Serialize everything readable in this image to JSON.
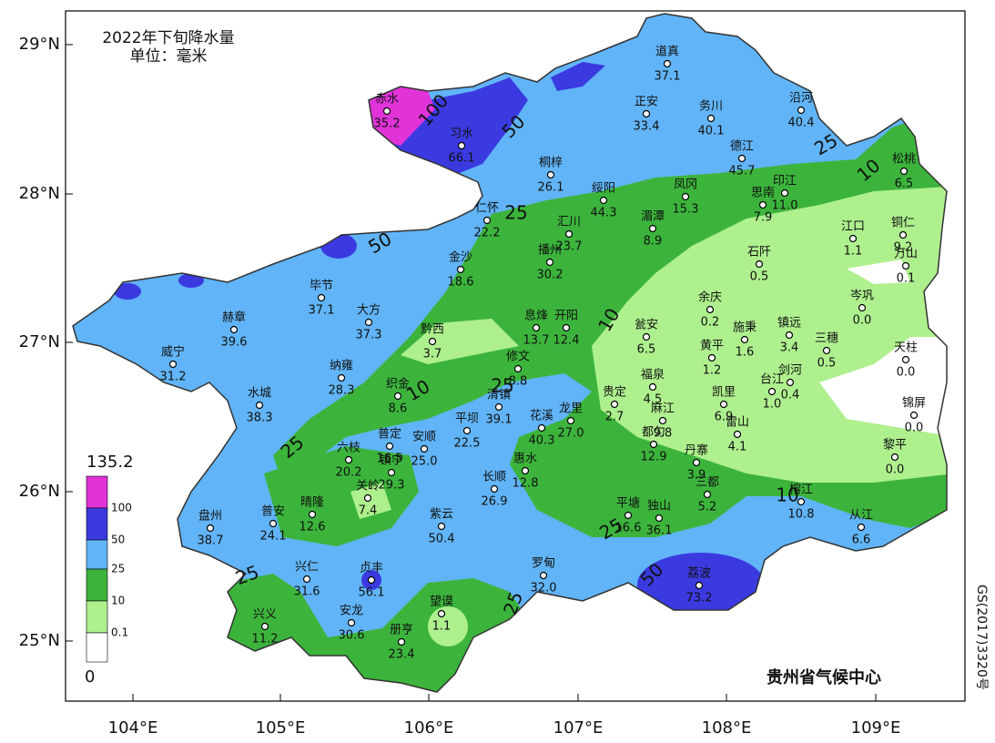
{
  "map": {
    "title": "2022年下旬降水量",
    "unit": "单位：毫米",
    "lat_ticks": [
      "29°N",
      "28°N",
      "27°N",
      "26°N",
      "25°N"
    ],
    "lon_ticks": [
      "104°E",
      "105°E",
      "106°E",
      "107°E",
      "108°E",
      "109°E"
    ],
    "legend": {
      "max": "135.2",
      "levels": [
        "100",
        "50",
        "25",
        "10",
        "0.1"
      ],
      "min": "0"
    },
    "contour_labels": [
      "100",
      "50",
      "50",
      "25",
      "25",
      "10",
      "10",
      "10",
      "25",
      "25",
      "10",
      "25",
      "50",
      "25",
      "25"
    ],
    "stations": [
      {
        "name": "道真",
        "value": "37.1"
      },
      {
        "name": "赤水",
        "value": "35.2"
      },
      {
        "name": "习水",
        "value": "66.1"
      },
      {
        "name": "正安",
        "value": "33.4"
      },
      {
        "name": "务川",
        "value": "40.1"
      },
      {
        "name": "沿河",
        "value": "40.4"
      },
      {
        "name": "德江",
        "value": "45.7"
      },
      {
        "name": "松桃",
        "value": "6.5"
      },
      {
        "name": "桐梓",
        "value": "26.1"
      },
      {
        "name": "绥阳",
        "value": "44.3"
      },
      {
        "name": "凤冈",
        "value": "15.3"
      },
      {
        "name": "印江",
        "value": "11.0"
      },
      {
        "name": "思南",
        "value": "7.9"
      },
      {
        "name": "仁怀",
        "value": "22.2"
      },
      {
        "name": "汇川",
        "value": "23.7"
      },
      {
        "name": "湄潭",
        "value": "8.9"
      },
      {
        "name": "江口",
        "value": "1.1"
      },
      {
        "name": "铜仁",
        "value": "9.2"
      },
      {
        "name": "万山",
        "value": "0.1"
      },
      {
        "name": "播州",
        "value": "30.2"
      },
      {
        "name": "金沙",
        "value": "18.6"
      },
      {
        "name": "石阡",
        "value": "0.5"
      },
      {
        "name": "毕节",
        "value": "37.1"
      },
      {
        "name": "大方",
        "value": "37.3"
      },
      {
        "name": "岑巩",
        "value": "0.0"
      },
      {
        "name": "余庆",
        "value": "0.2"
      },
      {
        "name": "赫章",
        "value": "39.6"
      },
      {
        "name": "黔西",
        "value": "3.7"
      },
      {
        "name": "息烽",
        "value": "13.7"
      },
      {
        "name": "开阳",
        "value": "12.4"
      },
      {
        "name": "瓮安",
        "value": "6.5"
      },
      {
        "name": "施秉",
        "value": "1.6"
      },
      {
        "name": "镇远",
        "value": "3.4"
      },
      {
        "name": "三穗",
        "value": "0.5"
      },
      {
        "name": "天柱",
        "value": "0.0"
      },
      {
        "name": "威宁",
        "value": "31.2"
      },
      {
        "name": "黄平",
        "value": "1.2"
      },
      {
        "name": "修文",
        "value": "8.8"
      },
      {
        "name": "纳雍",
        "value": "28.3"
      },
      {
        "name": "剑河",
        "value": "0.4"
      },
      {
        "name": "台江",
        "value": "1.0"
      },
      {
        "name": "福泉",
        "value": "4.5"
      },
      {
        "name": "织金",
        "value": "8.6"
      },
      {
        "name": "贵定",
        "value": "2.7"
      },
      {
        "name": "凯里",
        "value": "6.9"
      },
      {
        "name": "水城",
        "value": "38.3"
      },
      {
        "name": "锦屏",
        "value": "0.0"
      },
      {
        "name": "清镇",
        "value": "39.1"
      },
      {
        "name": "花溪",
        "value": "40.3"
      },
      {
        "name": "龙里",
        "value": "27.0"
      },
      {
        "name": "雷山",
        "value": "4.1"
      },
      {
        "name": "麻江",
        "value": "9.8"
      },
      {
        "name": "平坝",
        "value": "22.5"
      },
      {
        "name": "都匀",
        "value": "12.9"
      },
      {
        "name": "黎平",
        "value": "0.0"
      },
      {
        "name": "六枝",
        "value": "20.2"
      },
      {
        "name": "普定",
        "value": "16.5"
      },
      {
        "name": "安顺",
        "value": "25.0"
      },
      {
        "name": "丹寨",
        "value": "3.9"
      },
      {
        "name": "惠水",
        "value": "12.8"
      },
      {
        "name": "镇宁",
        "value": "29.3"
      },
      {
        "name": "关岭",
        "value": "7.4"
      },
      {
        "name": "三都",
        "value": "5.2"
      },
      {
        "name": "长顺",
        "value": "26.9"
      },
      {
        "name": "榕江",
        "value": "10.8"
      },
      {
        "name": "晴隆",
        "value": "12.6"
      },
      {
        "name": "普安",
        "value": "24.1"
      },
      {
        "name": "盘州",
        "value": "38.7"
      },
      {
        "name": "紫云",
        "value": "50.4"
      },
      {
        "name": "平塘",
        "value": "16.6"
      },
      {
        "name": "独山",
        "value": "36.1"
      },
      {
        "name": "从江",
        "value": "6.6"
      },
      {
        "name": "兴仁",
        "value": "31.6"
      },
      {
        "name": "贞丰",
        "value": "56.1"
      },
      {
        "name": "罗甸",
        "value": "32.0"
      },
      {
        "name": "荔波",
        "value": "73.2"
      },
      {
        "name": "安龙",
        "value": "30.6"
      },
      {
        "name": "望谟",
        "value": "1.1"
      },
      {
        "name": "兴义",
        "value": "11.2"
      },
      {
        "name": "册亨",
        "value": "23.4"
      }
    ],
    "credit": "贵州省气候中心",
    "approval": "GS(2017)3320号"
  }
}
